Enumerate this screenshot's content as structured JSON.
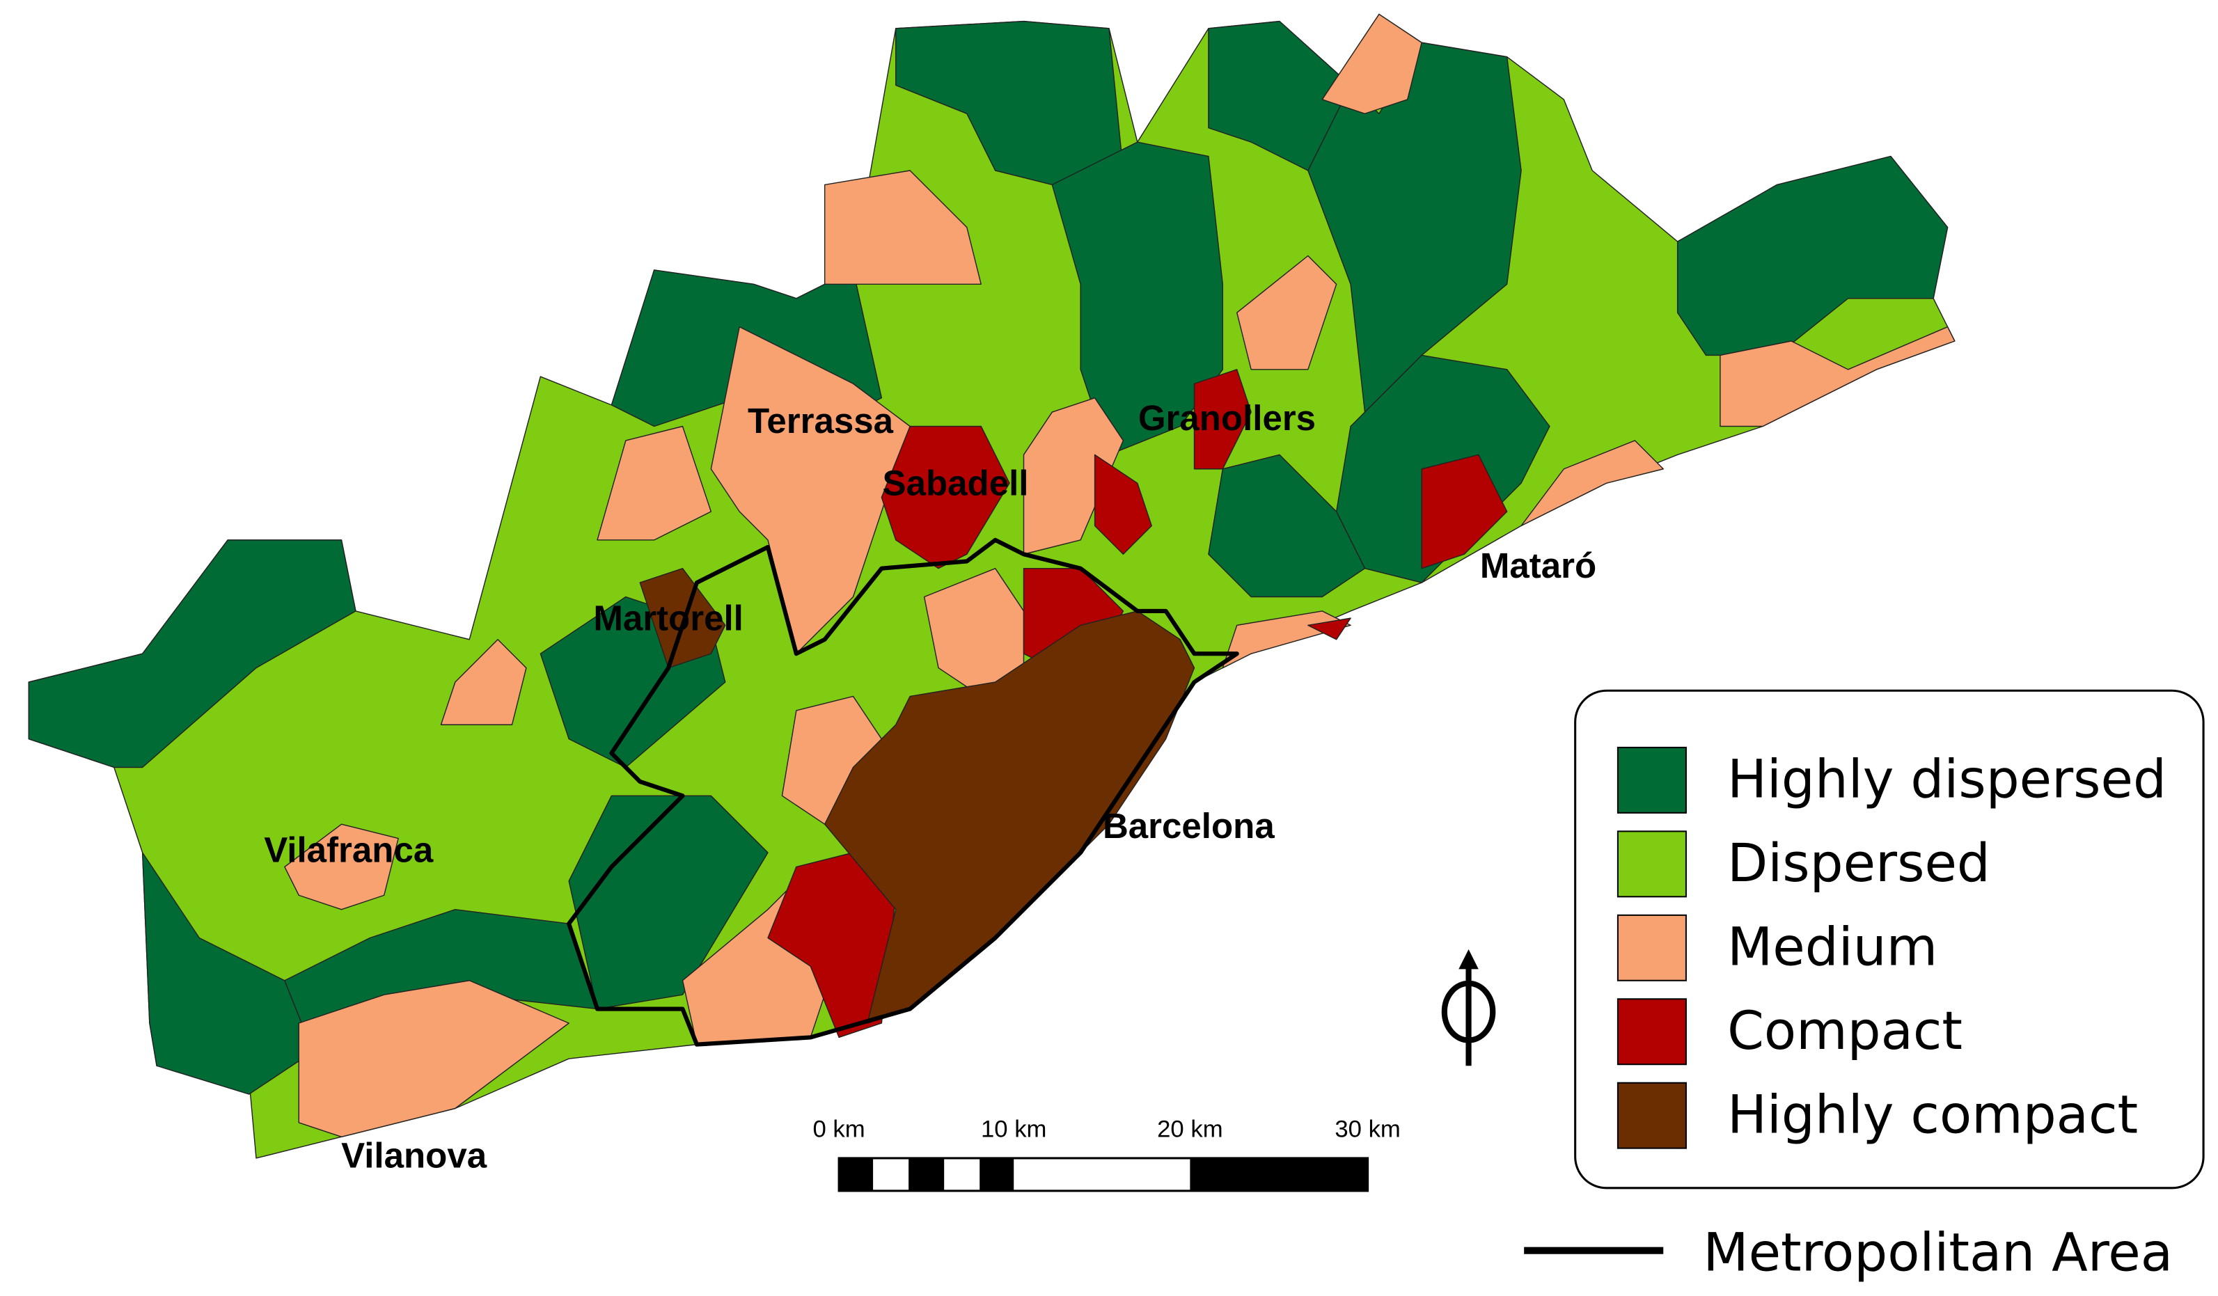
{
  "map": {
    "places": [
      "Terrassa",
      "Sabadell",
      "Granollers",
      "Mataró",
      "Martorell",
      "Barcelona",
      "Vilafranca",
      "Vilanova"
    ],
    "legend": [
      {
        "label": "Highly dispersed",
        "color": "#006b35"
      },
      {
        "label": "Dispersed",
        "color": "#80cc12"
      },
      {
        "label": "Medium",
        "color": "#f8a272"
      },
      {
        "label": "Compact",
        "color": "#b30000"
      },
      {
        "label": "Highly compact",
        "color": "#6b2e00"
      }
    ],
    "boundary_legend": "Metropolitan Area",
    "scale_bar": [
      "0 km",
      "10 km",
      "20 km",
      "30 km"
    ]
  }
}
